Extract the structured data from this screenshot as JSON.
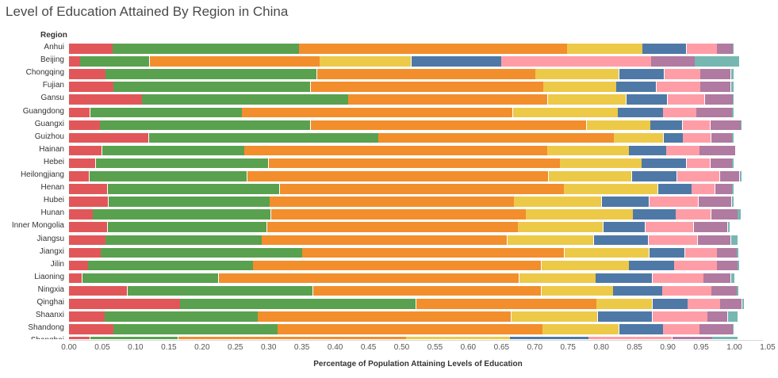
{
  "chart_data": {
    "type": "bar",
    "orientation": "horizontal",
    "stacked": true,
    "title": "Level of Education Attained By Region in China",
    "category_header": "Region",
    "xlabel": "Percentage of Population Attaining Levels of Education",
    "ylabel": "",
    "xlim": [
      0,
      1.05
    ],
    "x_ticks": [
      "0.00",
      "0.05",
      "0.10",
      "0.15",
      "0.20",
      "0.25",
      "0.30",
      "0.35",
      "0.40",
      "0.45",
      "0.50",
      "0.55",
      "0.60",
      "0.65",
      "0.70",
      "0.75",
      "0.80",
      "0.85",
      "0.90",
      "0.95",
      "1.00",
      "1.05"
    ],
    "series_colors": [
      "#e15759",
      "#59a14f",
      "#f28e2b",
      "#edc948",
      "#4e79a7",
      "#ff9da7",
      "#b07aa1",
      "#76b7b2"
    ],
    "categories": [
      "Anhui",
      "Beijing",
      "Chongqing",
      "Fujian",
      "Gansu",
      "Guangdong",
      "Guangxi",
      "Guizhou",
      "Hainan",
      "Hebei",
      "Heilongjiang",
      "Henan",
      "Hubei",
      "Hunan",
      "Inner Mongolia",
      "Jiangsu",
      "Jiangxi",
      "Jilin",
      "Liaoning",
      "Ningxia",
      "Qinghai",
      "Shaanxi",
      "Shandong",
      "Shanghai"
    ],
    "series": [
      {
        "values": [
          0.066,
          0.017,
          0.055,
          0.067,
          0.11,
          0.032,
          0.047,
          0.12,
          0.05,
          0.04,
          0.031,
          0.058,
          0.059,
          0.036,
          0.058,
          0.055,
          0.048,
          0.029,
          0.02,
          0.088,
          0.167,
          0.054,
          0.067,
          0.032
        ]
      },
      {
        "values": [
          0.28,
          0.104,
          0.318,
          0.296,
          0.31,
          0.228,
          0.316,
          0.345,
          0.214,
          0.26,
          0.237,
          0.259,
          0.243,
          0.268,
          0.24,
          0.235,
          0.303,
          0.248,
          0.205,
          0.279,
          0.355,
          0.23,
          0.247,
          0.132
        ]
      },
      {
        "values": [
          0.403,
          0.256,
          0.328,
          0.35,
          0.3,
          0.407,
          0.415,
          0.354,
          0.455,
          0.438,
          0.453,
          0.427,
          0.367,
          0.383,
          0.377,
          0.369,
          0.394,
          0.433,
          0.452,
          0.343,
          0.271,
          0.381,
          0.398,
          0.343
        ]
      },
      {
        "values": [
          0.113,
          0.138,
          0.126,
          0.11,
          0.118,
          0.158,
          0.096,
          0.075,
          0.123,
          0.123,
          0.125,
          0.141,
          0.132,
          0.161,
          0.128,
          0.13,
          0.127,
          0.132,
          0.115,
          0.108,
          0.084,
          0.13,
          0.115,
          0.156
        ]
      },
      {
        "values": [
          0.066,
          0.135,
          0.068,
          0.06,
          0.062,
          0.068,
          0.048,
          0.029,
          0.056,
          0.067,
          0.068,
          0.051,
          0.071,
          0.064,
          0.063,
          0.082,
          0.054,
          0.068,
          0.085,
          0.074,
          0.053,
          0.082,
          0.066,
          0.118
        ]
      },
      {
        "values": [
          0.046,
          0.225,
          0.054,
          0.066,
          0.056,
          0.05,
          0.042,
          0.042,
          0.05,
          0.036,
          0.064,
          0.035,
          0.074,
          0.053,
          0.073,
          0.074,
          0.048,
          0.064,
          0.077,
          0.074,
          0.049,
          0.083,
          0.055,
          0.126
        ]
      },
      {
        "values": [
          0.024,
          0.066,
          0.046,
          0.046,
          0.042,
          0.054,
          0.046,
          0.032,
          0.054,
          0.033,
          0.03,
          0.026,
          0.05,
          0.04,
          0.051,
          0.05,
          0.03,
          0.031,
          0.041,
          0.038,
          0.033,
          0.03,
          0.05,
          0.06
        ]
      },
      {
        "values": [
          0.002,
          0.067,
          0.005,
          0.004,
          0.002,
          0.003,
          0.001,
          0.002,
          0.0,
          0.002,
          0.003,
          0.003,
          0.004,
          0.005,
          0.004,
          0.01,
          0.003,
          0.003,
          0.006,
          0.003,
          0.003,
          0.015,
          0.002,
          0.038
        ]
      }
    ]
  }
}
